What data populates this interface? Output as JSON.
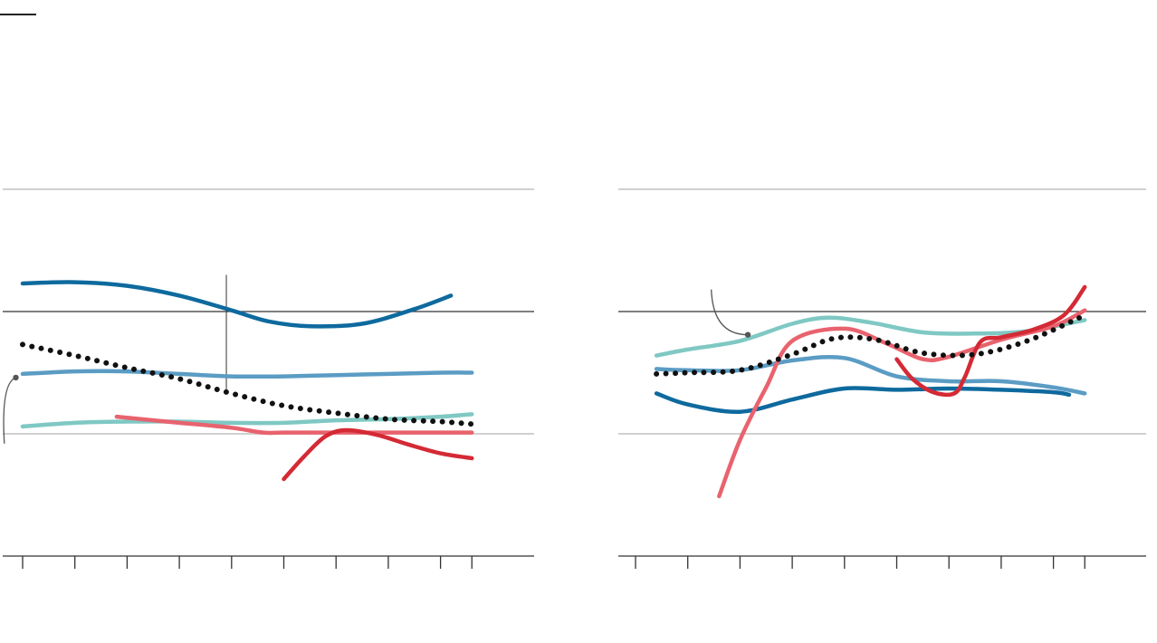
{
  "colors": {
    "background": "#ffffff",
    "gridline": "#d0d0d0",
    "axis": "#333333",
    "annotation": "#555555",
    "series_navy": "#0e6a9e",
    "series_steel": "#5b9cc4",
    "series_teal": "#7fc8c3",
    "series_pink": "#e8636e",
    "series_red": "#d42a35",
    "series_dotted": "#111111"
  },
  "chart_data": [
    {
      "type": "line",
      "title": "",
      "xlabel": "",
      "ylabel": "",
      "xlim": [
        0,
        10
      ],
      "ylim": [
        0,
        3
      ],
      "x_ticks": [
        0,
        1,
        2,
        3,
        4,
        5,
        6,
        7,
        8,
        8.6
      ],
      "y_gridlines": [
        0,
        1,
        2,
        3
      ],
      "y_reference_line": 2,
      "grid": true,
      "legend": "none",
      "series": [
        {
          "color": "navy",
          "width": 4.5,
          "dotted": false,
          "x": [
            0,
            1,
            2,
            3,
            4,
            4.7,
            5.5,
            6.5,
            7.5,
            8.2
          ],
          "y": [
            2.23,
            2.24,
            2.21,
            2.13,
            2.01,
            1.92,
            1.88,
            1.9,
            2.02,
            2.13
          ]
        },
        {
          "color": "steel",
          "width": 4.5,
          "dotted": false,
          "x": [
            0,
            1,
            2,
            3,
            4,
            5,
            6,
            7,
            8,
            8.6
          ],
          "y": [
            1.49,
            1.51,
            1.51,
            1.49,
            1.47,
            1.47,
            1.48,
            1.49,
            1.5,
            1.5
          ]
        },
        {
          "color": "teal",
          "width": 4.5,
          "dotted": false,
          "x": [
            0,
            1,
            2,
            3,
            4,
            5,
            6,
            7,
            8,
            8.6
          ],
          "y": [
            1.06,
            1.09,
            1.1,
            1.1,
            1.09,
            1.09,
            1.11,
            1.12,
            1.14,
            1.16
          ]
        },
        {
          "color": "pink",
          "width": 4.5,
          "dotted": false,
          "x": [
            1.8,
            2.5,
            3,
            4,
            4.6,
            5,
            6,
            7,
            8,
            8.6
          ],
          "y": [
            1.14,
            1.11,
            1.09,
            1.05,
            1.01,
            1.01,
            1.01,
            1.01,
            1.01,
            1.01
          ]
        },
        {
          "color": "red",
          "width": 4.5,
          "dotted": false,
          "x": [
            5,
            5.4,
            5.8,
            6.2,
            6.8,
            7.4,
            8,
            8.6
          ],
          "y": [
            0.63,
            0.82,
            0.98,
            1.03,
            0.99,
            0.91,
            0.84,
            0.8
          ]
        },
        {
          "color": "dotted",
          "width": 6,
          "dotted": true,
          "x": [
            0,
            1,
            2,
            3,
            4,
            5,
            6,
            7,
            8,
            8.6
          ],
          "y": [
            1.73,
            1.64,
            1.54,
            1.45,
            1.33,
            1.23,
            1.17,
            1.12,
            1.1,
            1.08
          ]
        }
      ],
      "annotations": [
        {
          "type": "vertical-rule",
          "x": 3.9,
          "y_from": 1.33,
          "y_to": 2.3
        },
        {
          "type": "pointer",
          "x_dot": -0.13,
          "y_dot": 1.46,
          "x_tail": -0.35,
          "y_tail": 0.92
        }
      ]
    },
    {
      "type": "line",
      "title": "",
      "xlabel": "",
      "ylabel": "",
      "xlim": [
        0,
        10
      ],
      "ylim": [
        0,
        3
      ],
      "x_ticks": [
        0,
        1,
        2,
        3,
        4,
        5,
        6,
        7,
        8,
        8.6
      ],
      "y_gridlines": [
        0,
        1,
        2,
        3
      ],
      "y_reference_line": 2,
      "grid": true,
      "legend": "none",
      "series": [
        {
          "color": "navy",
          "width": 4.5,
          "dotted": false,
          "x": [
            0.4,
            1,
            2,
            3,
            4,
            5,
            6,
            7,
            8,
            8.3
          ],
          "y": [
            1.33,
            1.24,
            1.18,
            1.28,
            1.37,
            1.36,
            1.37,
            1.36,
            1.34,
            1.32
          ]
        },
        {
          "color": "steel",
          "width": 4.5,
          "dotted": false,
          "x": [
            0.4,
            1,
            2,
            3,
            4,
            5,
            6,
            7,
            8,
            8.6
          ],
          "y": [
            1.53,
            1.52,
            1.52,
            1.6,
            1.62,
            1.47,
            1.43,
            1.43,
            1.38,
            1.33
          ]
        },
        {
          "color": "teal",
          "width": 4.5,
          "dotted": false,
          "x": [
            0.4,
            1,
            2,
            3,
            3.7,
            4.5,
            5.5,
            6.5,
            7.5,
            8.6
          ],
          "y": [
            1.64,
            1.69,
            1.76,
            1.9,
            1.95,
            1.91,
            1.83,
            1.82,
            1.84,
            1.93
          ]
        },
        {
          "color": "pink",
          "width": 4.5,
          "dotted": false,
          "x": [
            1.6,
            2,
            2.5,
            3,
            4,
            4.8,
            5.5,
            6,
            7,
            8,
            8.6
          ],
          "y": [
            0.49,
            0.95,
            1.38,
            1.76,
            1.86,
            1.74,
            1.61,
            1.63,
            1.77,
            1.88,
            2.01
          ]
        },
        {
          "color": "red",
          "width": 4.5,
          "dotted": false,
          "x": [
            5,
            5.3,
            5.7,
            6.1,
            6.3,
            6.6,
            7,
            7.6,
            8.2,
            8.6
          ],
          "y": [
            1.61,
            1.45,
            1.34,
            1.33,
            1.46,
            1.75,
            1.79,
            1.85,
            1.97,
            2.2
          ]
        },
        {
          "color": "dotted",
          "width": 6,
          "dotted": true,
          "x": [
            0.4,
            1,
            2,
            3,
            3.8,
            4.6,
            5.5,
            6.5,
            7.5,
            8.6
          ],
          "y": [
            1.49,
            1.5,
            1.52,
            1.65,
            1.78,
            1.77,
            1.66,
            1.65,
            1.76,
            1.97
          ]
        }
      ],
      "annotations": [
        {
          "type": "pointer",
          "x_dot": 2.15,
          "y_dot": 1.81,
          "x_tail": 1.45,
          "y_tail": 2.18
        }
      ]
    }
  ]
}
